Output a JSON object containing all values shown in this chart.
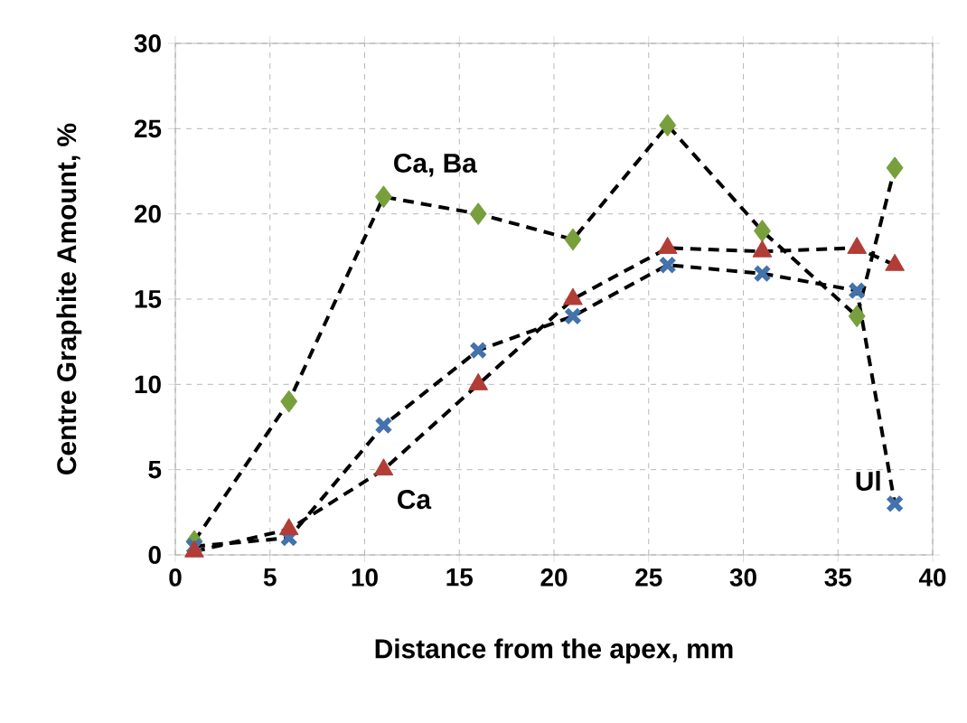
{
  "chart_data": {
    "type": "line",
    "xlabel": "Distance from the apex, mm",
    "ylabel": "Centre Graphite Amount, %",
    "x": [
      1,
      6,
      11,
      16,
      21,
      26,
      31,
      36,
      38
    ],
    "series": [
      {
        "name": "Ca, Ba",
        "color": "#77a03c",
        "marker": "diamond",
        "values": [
          0.8,
          9,
          21,
          20,
          18.5,
          25.2,
          19,
          14,
          22.7
        ]
      },
      {
        "name": "Ul",
        "color": "#4372ac",
        "marker": "cross",
        "values": [
          0.5,
          1,
          7.6,
          12,
          14,
          17,
          16.5,
          15.5,
          3
        ]
      },
      {
        "name": "Ca",
        "color": "#b23c36",
        "marker": "triangle",
        "values": [
          0.2,
          1.5,
          5,
          10,
          15,
          18,
          17.8,
          18,
          17
        ]
      }
    ],
    "xlim": [
      0,
      40
    ],
    "ylim": [
      0,
      30
    ],
    "xticks": [
      0,
      5,
      10,
      15,
      20,
      25,
      30,
      35,
      40
    ],
    "yticks": [
      0,
      5,
      10,
      15,
      20,
      25,
      30
    ],
    "grid": true,
    "line_style": "dashed"
  }
}
